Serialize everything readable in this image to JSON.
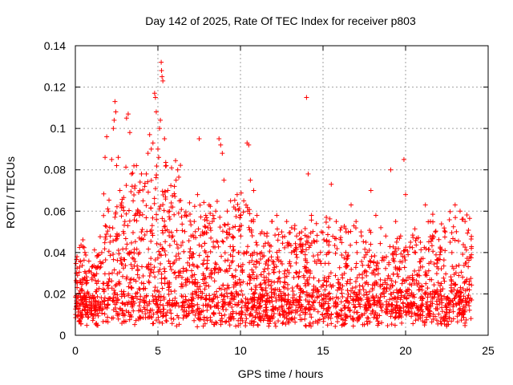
{
  "chart_data": {
    "type": "scatter",
    "title": "Day 142 of 2025, Rate Of TEC Index for receiver p803",
    "xlabel": "GPS time / hours",
    "ylabel": "ROTI / TECUs",
    "xlim": [
      0,
      25
    ],
    "ylim": [
      0,
      0.14
    ],
    "x_ticks": [
      0,
      5,
      10,
      15,
      20,
      25
    ],
    "y_ticks": [
      0,
      0.02,
      0.04,
      0.06,
      0.08,
      0.1,
      0.12,
      0.14
    ],
    "x_tick_labels": [
      "0",
      "5",
      "10",
      "15",
      "20",
      "25"
    ],
    "y_tick_labels": [
      "0",
      "0.02",
      "0.04",
      "0.06",
      "0.08",
      "0.1",
      "0.12",
      "0.14"
    ],
    "grid": true,
    "marker": "+",
    "color": "#ff0000",
    "series": [
      {
        "name": "ROTI",
        "points": [
          [
            0.1,
            0.038
          ],
          [
            0.3,
            0.036
          ],
          [
            0.5,
            0.027
          ],
          [
            0.8,
            0.02
          ],
          [
            1.0,
            0.033
          ],
          [
            1.3,
            0.022
          ],
          [
            1.6,
            0.04
          ],
          [
            1.8,
            0.086
          ],
          [
            1.9,
            0.096
          ],
          [
            2.0,
            0.06
          ],
          [
            2.1,
            0.045
          ],
          [
            2.2,
            0.085
          ],
          [
            2.3,
            0.1
          ],
          [
            2.35,
            0.104
          ],
          [
            2.4,
            0.113
          ],
          [
            2.45,
            0.108
          ],
          [
            2.5,
            0.082
          ],
          [
            2.6,
            0.086
          ],
          [
            2.7,
            0.07
          ],
          [
            2.8,
            0.064
          ],
          [
            2.9,
            0.062
          ],
          [
            3.0,
            0.055
          ],
          [
            3.1,
            0.105
          ],
          [
            3.2,
            0.107
          ],
          [
            3.3,
            0.098
          ],
          [
            3.4,
            0.078
          ],
          [
            3.5,
            0.065
          ],
          [
            3.6,
            0.058
          ],
          [
            3.7,
            0.082
          ],
          [
            3.8,
            0.06
          ],
          [
            3.9,
            0.07
          ],
          [
            4.0,
            0.05
          ],
          [
            4.1,
            0.065
          ],
          [
            4.2,
            0.072
          ],
          [
            4.3,
            0.078
          ],
          [
            4.4,
            0.088
          ],
          [
            4.5,
            0.097
          ],
          [
            4.6,
            0.09
          ],
          [
            4.7,
            0.093
          ],
          [
            4.8,
            0.117
          ],
          [
            4.85,
            0.115
          ],
          [
            4.9,
            0.108
          ],
          [
            5.0,
            0.09
          ],
          [
            5.05,
            0.086
          ],
          [
            5.1,
            0.1
          ],
          [
            5.15,
            0.104
          ],
          [
            5.2,
            0.132
          ],
          [
            5.22,
            0.128
          ],
          [
            5.25,
            0.125
          ],
          [
            5.3,
            0.123
          ],
          [
            5.4,
            0.095
          ],
          [
            5.5,
            0.082
          ],
          [
            5.6,
            0.07
          ],
          [
            5.7,
            0.06
          ],
          [
            5.8,
            0.062
          ],
          [
            5.9,
            0.062
          ],
          [
            6.0,
            0.072
          ],
          [
            6.1,
            0.075
          ],
          [
            6.2,
            0.08
          ],
          [
            6.3,
            0.065
          ],
          [
            6.5,
            0.045
          ],
          [
            6.8,
            0.035
          ],
          [
            7.0,
            0.048
          ],
          [
            7.2,
            0.055
          ],
          [
            7.4,
            0.068
          ],
          [
            7.5,
            0.095
          ],
          [
            7.7,
            0.05
          ],
          [
            7.9,
            0.058
          ],
          [
            8.1,
            0.063
          ],
          [
            8.3,
            0.055
          ],
          [
            8.5,
            0.06
          ],
          [
            8.7,
            0.095
          ],
          [
            8.8,
            0.092
          ],
          [
            8.9,
            0.088
          ],
          [
            9.0,
            0.075
          ],
          [
            9.2,
            0.06
          ],
          [
            9.4,
            0.065
          ],
          [
            9.6,
            0.062
          ],
          [
            9.8,
            0.068
          ],
          [
            10.0,
            0.058
          ],
          [
            10.2,
            0.065
          ],
          [
            10.4,
            0.093
          ],
          [
            10.5,
            0.092
          ],
          [
            10.6,
            0.075
          ],
          [
            10.8,
            0.07
          ],
          [
            11.0,
            0.058
          ],
          [
            11.3,
            0.05
          ],
          [
            11.6,
            0.048
          ],
          [
            11.9,
            0.055
          ],
          [
            12.2,
            0.058
          ],
          [
            12.5,
            0.05
          ],
          [
            12.8,
            0.055
          ],
          [
            13.1,
            0.052
          ],
          [
            13.4,
            0.048
          ],
          [
            13.7,
            0.05
          ],
          [
            14.0,
            0.115
          ],
          [
            14.1,
            0.078
          ],
          [
            14.3,
            0.058
          ],
          [
            14.6,
            0.054
          ],
          [
            14.9,
            0.05
          ],
          [
            15.2,
            0.057
          ],
          [
            15.5,
            0.073
          ],
          [
            15.8,
            0.055
          ],
          [
            16.1,
            0.052
          ],
          [
            16.4,
            0.05
          ],
          [
            16.7,
            0.063
          ],
          [
            17.0,
            0.055
          ],
          [
            17.3,
            0.05
          ],
          [
            17.6,
            0.045
          ],
          [
            17.9,
            0.07
          ],
          [
            18.2,
            0.058
          ],
          [
            18.5,
            0.052
          ],
          [
            18.8,
            0.048
          ],
          [
            19.1,
            0.08
          ],
          [
            19.4,
            0.055
          ],
          [
            19.7,
            0.048
          ],
          [
            19.9,
            0.085
          ],
          [
            20.0,
            0.068
          ],
          [
            20.3,
            0.045
          ],
          [
            20.6,
            0.04
          ],
          [
            20.9,
            0.045
          ],
          [
            21.2,
            0.063
          ],
          [
            21.5,
            0.055
          ],
          [
            21.8,
            0.05
          ],
          [
            22.1,
            0.042
          ],
          [
            22.4,
            0.05
          ],
          [
            22.7,
            0.045
          ],
          [
            23.0,
            0.063
          ],
          [
            23.3,
            0.06
          ],
          [
            23.6,
            0.055
          ],
          [
            23.9,
            0.038
          ]
        ]
      }
    ]
  }
}
